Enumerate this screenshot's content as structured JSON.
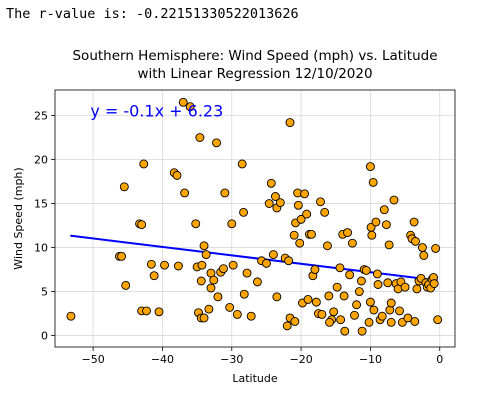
{
  "output_text": "The r-value is: -0.22151330522013626",
  "colors": {
    "points": "#FFA500",
    "point_edge": "#000000",
    "regression": "#0000FF",
    "annotation": "#0000FF",
    "grid": "#d9d9d9"
  },
  "chart_data": {
    "type": "scatter",
    "title_line1": "Southern Hemisphere: Wind Speed (mph) vs. Latitude",
    "title_line2": "with Linear Regression 12/10/2020",
    "xlabel": "Latitude",
    "ylabel": "Wind Speed (mph)",
    "xlim": [
      -55.5,
      2.2
    ],
    "ylim": [
      -1.3,
      27.9
    ],
    "xticks": [
      -50,
      -40,
      -30,
      -20,
      -10,
      0
    ],
    "yticks": [
      0,
      5,
      10,
      15,
      20,
      25
    ],
    "grid": true,
    "annotation": {
      "text": "y = -0.1x + 6.23",
      "x": -50.4,
      "y": 24.9
    },
    "regression": {
      "x1": -53.3,
      "y1": 11.35,
      "x2": -0.3,
      "y2": 6.26
    },
    "points": [
      [
        -53.2,
        2.2
      ],
      [
        -46.2,
        9.0
      ],
      [
        -45.9,
        9.0
      ],
      [
        -45.5,
        16.9
      ],
      [
        -45.3,
        5.7
      ],
      [
        -43.3,
        12.7
      ],
      [
        -43.0,
        12.6
      ],
      [
        -42.7,
        19.5
      ],
      [
        -43.0,
        2.8
      ],
      [
        -42.3,
        2.8
      ],
      [
        -41.6,
        8.1
      ],
      [
        -41.2,
        6.8
      ],
      [
        -40.5,
        2.7
      ],
      [
        -39.7,
        8.0
      ],
      [
        -38.3,
        18.5
      ],
      [
        -37.9,
        18.2
      ],
      [
        -37.7,
        7.9
      ],
      [
        -37.0,
        26.5
      ],
      [
        -36.8,
        16.2
      ],
      [
        -36.0,
        26.0
      ],
      [
        -35.2,
        12.7
      ],
      [
        -34.6,
        22.5
      ],
      [
        -35.0,
        7.8
      ],
      [
        -34.4,
        6.2
      ],
      [
        -34.3,
        8.0
      ],
      [
        -34.0,
        10.2
      ],
      [
        -33.7,
        9.2
      ],
      [
        -33.3,
        3.0
      ],
      [
        -33.0,
        7.1
      ],
      [
        -33.0,
        5.4
      ],
      [
        -32.6,
        6.3
      ],
      [
        -32.2,
        21.9
      ],
      [
        -32.0,
        4.4
      ],
      [
        -31.6,
        7.2
      ],
      [
        -31.2,
        7.6
      ],
      [
        -31.0,
        16.2
      ],
      [
        -34.8,
        2.6
      ],
      [
        -34.4,
        2.0
      ],
      [
        -34.0,
        2.0
      ],
      [
        -30.3,
        3.2
      ],
      [
        -30.0,
        12.7
      ],
      [
        -29.8,
        8.0
      ],
      [
        -29.2,
        2.4
      ],
      [
        -28.5,
        19.5
      ],
      [
        -28.3,
        14.0
      ],
      [
        -28.2,
        4.7
      ],
      [
        -27.8,
        7.1
      ],
      [
        -27.2,
        2.2
      ],
      [
        -26.3,
        6.1
      ],
      [
        -25.7,
        8.5
      ],
      [
        -25.0,
        8.2
      ],
      [
        -24.6,
        15.0
      ],
      [
        -24.3,
        17.3
      ],
      [
        -24.0,
        9.2
      ],
      [
        -23.5,
        14.5
      ],
      [
        -23.5,
        4.4
      ],
      [
        -23.0,
        15.1
      ],
      [
        -22.3,
        8.8
      ],
      [
        -21.8,
        8.5
      ],
      [
        -22.0,
        1.1
      ],
      [
        -21.6,
        2.0
      ],
      [
        -21.6,
        24.2
      ],
      [
        -21.0,
        11.4
      ],
      [
        -20.8,
        12.8
      ],
      [
        -20.5,
        16.2
      ],
      [
        -20.4,
        14.8
      ],
      [
        -20.2,
        10.5
      ],
      [
        -20.0,
        13.2
      ],
      [
        -19.8,
        3.7
      ],
      [
        -19.5,
        16.1
      ],
      [
        -19.2,
        13.8
      ],
      [
        -19.0,
        4.1
      ],
      [
        -18.8,
        11.5
      ],
      [
        -18.5,
        11.5
      ],
      [
        -18.3,
        6.8
      ],
      [
        -18.0,
        7.5
      ],
      [
        -17.8,
        3.8
      ],
      [
        -17.5,
        2.5
      ],
      [
        -17.2,
        15.2
      ],
      [
        -17.0,
        2.4
      ],
      [
        -16.6,
        14.0
      ],
      [
        -16.2,
        10.2
      ],
      [
        -16.0,
        4.5
      ],
      [
        -15.6,
        1.8
      ],
      [
        -15.3,
        2.7
      ],
      [
        -14.8,
        5.5
      ],
      [
        -14.4,
        7.7
      ],
      [
        -14.3,
        1.8
      ],
      [
        -14.0,
        11.5
      ],
      [
        -13.8,
        4.5
      ],
      [
        -13.3,
        11.7
      ],
      [
        -13.0,
        6.9
      ],
      [
        -12.6,
        10.5
      ],
      [
        -12.3,
        2.3
      ],
      [
        -12.0,
        3.5
      ],
      [
        -11.6,
        5.0
      ],
      [
        -11.3,
        6.2
      ],
      [
        -10.9,
        7.5
      ],
      [
        -10.6,
        7.4
      ],
      [
        -10.2,
        1.5
      ],
      [
        -10.0,
        3.8
      ],
      [
        -10.0,
        19.2
      ],
      [
        -9.9,
        12.3
      ],
      [
        -9.8,
        11.4
      ],
      [
        -9.6,
        17.4
      ],
      [
        -9.2,
        12.9
      ],
      [
        -9.0,
        7.0
      ],
      [
        -8.9,
        5.8
      ],
      [
        -8.6,
        1.8
      ],
      [
        -8.3,
        2.2
      ],
      [
        -8.0,
        14.3
      ],
      [
        -7.7,
        12.6
      ],
      [
        -7.5,
        6.0
      ],
      [
        -7.3,
        10.3
      ],
      [
        -7.2,
        2.9
      ],
      [
        -7.0,
        3.7
      ],
      [
        -6.6,
        15.4
      ],
      [
        -6.3,
        5.9
      ],
      [
        -6.0,
        5.3
      ],
      [
        -5.8,
        2.8
      ],
      [
        -5.6,
        6.1
      ],
      [
        -5.4,
        1.5
      ],
      [
        -5.0,
        5.5
      ],
      [
        -4.6,
        2.0
      ],
      [
        -4.2,
        11.4
      ],
      [
        -4.0,
        11.0
      ],
      [
        -3.7,
        12.9
      ],
      [
        -3.5,
        10.7
      ],
      [
        -3.3,
        5.3
      ],
      [
        -3.0,
        6.2
      ],
      [
        -2.7,
        6.5
      ],
      [
        -2.5,
        10.0
      ],
      [
        -2.3,
        9.1
      ],
      [
        -2.0,
        6.0
      ],
      [
        -1.8,
        5.5
      ],
      [
        -1.6,
        5.8
      ],
      [
        -1.3,
        5.4
      ],
      [
        -1.1,
        6.4
      ],
      [
        -0.9,
        6.6
      ],
      [
        -0.8,
        5.9
      ],
      [
        -0.6,
        9.9
      ],
      [
        -0.3,
        1.8
      ],
      [
        -3.6,
        1.6
      ],
      [
        -9.5,
        2.9
      ],
      [
        -11.2,
        0.5
      ],
      [
        -13.7,
        0.5
      ],
      [
        -15.9,
        1.5
      ],
      [
        -20.9,
        1.6
      ],
      [
        -7.0,
        1.5
      ],
      [
        -23.7,
        15.8
      ]
    ]
  }
}
